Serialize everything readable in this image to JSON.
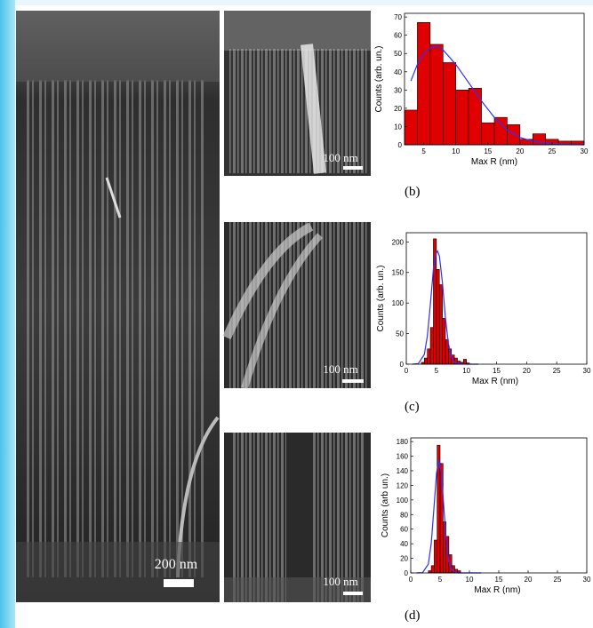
{
  "images": [
    {
      "scale_bar": "200 nm"
    },
    {
      "scale_bar": "100 nm"
    },
    {
      "scale_bar": "100 nm"
    },
    {
      "scale_bar": "100 nm"
    }
  ],
  "chart_data": [
    {
      "type": "histogram",
      "caption": "(b)",
      "x_label": "Max R (nm)",
      "y_label": "Counts (arb. un.)",
      "color": "#e00000",
      "bins": [
        2,
        4,
        6,
        8,
        10,
        12,
        14,
        16,
        18,
        20,
        22,
        24,
        26,
        28,
        30
      ],
      "values": [
        19,
        67,
        55,
        45,
        30,
        31,
        12,
        15,
        11,
        3,
        6,
        3,
        2,
        2
      ],
      "xlim": [
        2,
        30
      ],
      "xticks": [
        5,
        10,
        15,
        20,
        25,
        30
      ],
      "ylim": [
        0,
        72
      ],
      "yticks": [
        0,
        10,
        20,
        30,
        40,
        50,
        60,
        70
      ],
      "fit": {
        "color": "#3030ff",
        "x": [
          3,
          4,
          5,
          6,
          7,
          8,
          10,
          12,
          14,
          16,
          18,
          20,
          22,
          25,
          30
        ],
        "y": [
          35,
          44,
          50,
          53,
          54,
          52,
          44,
          34,
          24,
          15,
          8,
          4,
          2,
          0.5,
          0
        ]
      }
    },
    {
      "type": "histogram",
      "caption": "(c)",
      "x_label": "Max R (nm)",
      "y_label": "Counts (arb. un.)",
      "color": "#e00000",
      "bins": [
        2.5,
        3,
        3.5,
        4,
        4.5,
        5,
        5.5,
        6,
        6.5,
        7,
        7.5,
        8,
        8.5,
        9,
        9.5,
        10,
        10.5
      ],
      "values": [
        3,
        10,
        25,
        60,
        205,
        155,
        130,
        75,
        40,
        25,
        15,
        10,
        5,
        3,
        8,
        2
      ],
      "xlim": [
        0,
        30
      ],
      "xticks": [
        0,
        5,
        10,
        15,
        20,
        25,
        30
      ],
      "ylim": [
        0,
        215
      ],
      "yticks": [
        0,
        50,
        100,
        150,
        200
      ],
      "fit": {
        "color": "#3030ff",
        "x": [
          1,
          2,
          3,
          3.5,
          4,
          4.5,
          5,
          5.2,
          5.5,
          6,
          6.5,
          7,
          7.5,
          8,
          9,
          10,
          12
        ],
        "y": [
          0,
          1,
          16,
          46,
          98,
          155,
          182,
          185,
          177,
          134,
          76,
          34,
          12,
          3,
          0.5,
          0,
          0
        ]
      }
    },
    {
      "type": "histogram",
      "caption": "(d)",
      "x_label": "Max R (nm)",
      "y_label": "Counts (arb un.)",
      "color": "#e00000",
      "bins": [
        3,
        3.5,
        4,
        4.5,
        5,
        5.5,
        6,
        6.5,
        7,
        7.5,
        8,
        8.5
      ],
      "values": [
        3,
        10,
        45,
        175,
        150,
        70,
        50,
        25,
        10,
        5,
        3
      ],
      "xlim": [
        0,
        30
      ],
      "xticks": [
        0,
        5,
        10,
        15,
        20,
        25,
        30
      ],
      "ylim": [
        0,
        185
      ],
      "yticks": [
        0,
        20,
        40,
        60,
        80,
        100,
        120,
        140,
        160,
        180
      ],
      "fit": {
        "color": "#3030ff",
        "x": [
          1,
          2,
          3,
          3.5,
          4,
          4.4,
          4.8,
          5.2,
          5.6,
          6,
          6.5,
          7,
          8,
          9,
          12
        ],
        "y": [
          0,
          0.3,
          12,
          41,
          94,
          137,
          155,
          137,
          94,
          50,
          16,
          4,
          0,
          0,
          0
        ]
      }
    }
  ]
}
